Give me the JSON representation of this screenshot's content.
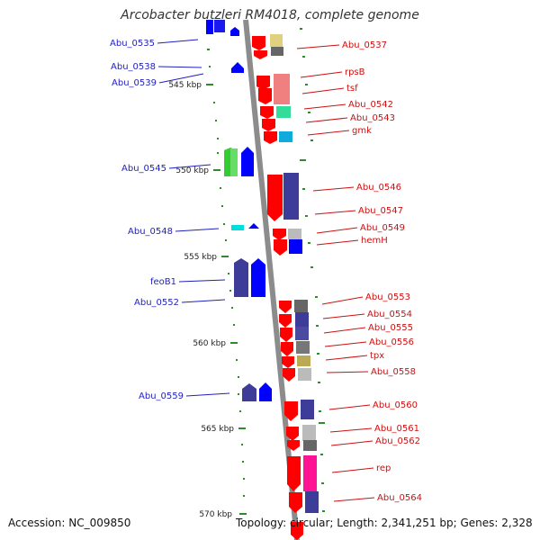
{
  "title": "Arcobacter butzleri RM4018, complete genome",
  "footer": {
    "accession": "Accession: NC_009850",
    "summary": "Topology: circular; Length: 2,341,251 bp; Genes: 2,328"
  },
  "colors": {
    "backbone": "#8c8c8c",
    "label_left": "#1f1fbf",
    "label_right": "#cc1010",
    "tick": "#2e8b2e",
    "strand_plus": "#0000ff",
    "strand_minus": "#ff0000"
  },
  "scale_labels": [
    "545 kbp",
    "550 kbp",
    "555 kbp",
    "560 kbp",
    "565 kbp",
    "570 kbp"
  ],
  "left_labels": [
    "Abu_0535",
    "Abu_0538",
    "Abu_0539",
    "Abu_0545",
    "Abu_0548",
    "feoB1",
    "Abu_0552",
    "Abu_0559"
  ],
  "right_labels": [
    "Abu_0537",
    "rpsB",
    "tsf",
    "Abu_0542",
    "Abu_0543",
    "gmk",
    "Abu_0546",
    "Abu_0547",
    "Abu_0549",
    "hemH",
    "Abu_0553",
    "Abu_0554",
    "Abu_0555",
    "Abu_0556",
    "tpx",
    "Abu_0558",
    "Abu_0560",
    "Abu_0561",
    "Abu_0562",
    "rep",
    "Abu_0564"
  ]
}
